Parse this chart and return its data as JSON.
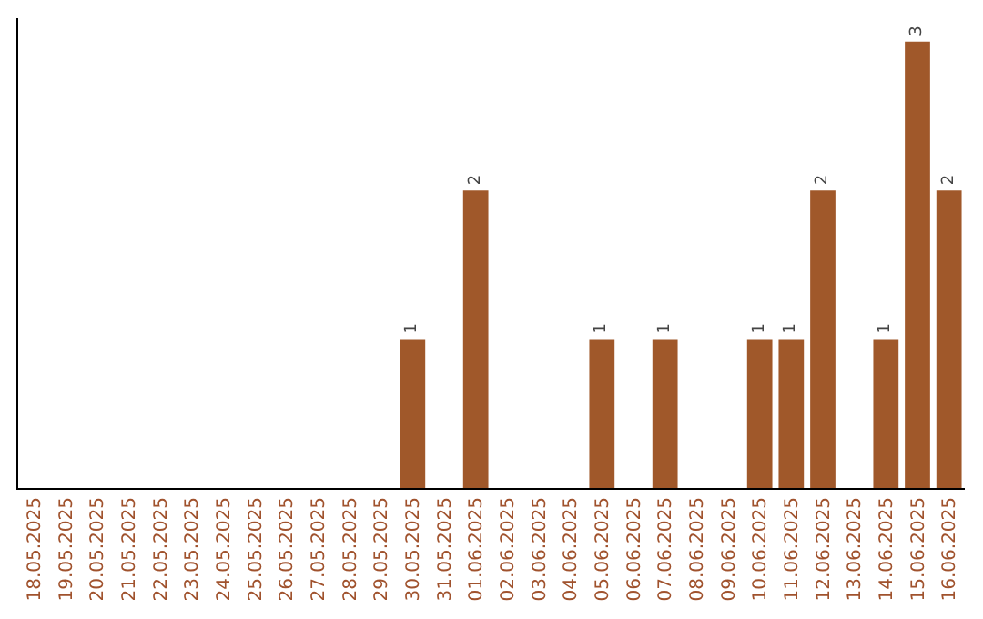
{
  "chart_data": {
    "type": "bar",
    "categories": [
      "18.05.2025",
      "19.05.2025",
      "20.05.2025",
      "21.05.2025",
      "22.05.2025",
      "23.05.2025",
      "24.05.2025",
      "25.05.2025",
      "26.05.2025",
      "27.05.2025",
      "28.05.2025",
      "29.05.2025",
      "30.05.2025",
      "31.05.2025",
      "01.06.2025",
      "02.06.2025",
      "03.06.2025",
      "04.06.2025",
      "05.06.2025",
      "06.06.2025",
      "07.06.2025",
      "08.06.2025",
      "09.06.2025",
      "10.06.2025",
      "11.06.2025",
      "12.06.2025",
      "13.06.2025",
      "14.06.2025",
      "15.06.2025",
      "16.06.2025"
    ],
    "values": [
      null,
      null,
      null,
      null,
      null,
      null,
      null,
      null,
      null,
      null,
      null,
      null,
      1,
      null,
      2,
      null,
      null,
      null,
      1,
      null,
      1,
      null,
      null,
      1,
      1,
      2,
      null,
      1,
      3,
      2
    ],
    "data_labels": true,
    "color": "#a0582a",
    "tick_labels": "x",
    "legend": false
  }
}
